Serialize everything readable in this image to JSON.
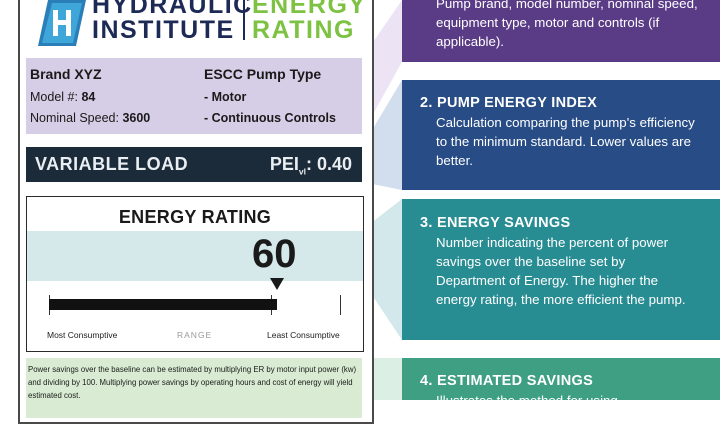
{
  "brand": {
    "line1_left": "HYDRAULIC",
    "line2_left": "INSTITUTE",
    "line1_right": "ENERGY",
    "line2_right": "RATING"
  },
  "pump_info": {
    "brand_name": "Brand XYZ",
    "model_label": "Model #:",
    "model_value": "84",
    "speed_label": "Nominal Speed:",
    "speed_value": "3600",
    "type_heading": "ESCC Pump Type",
    "type_items": [
      "- Motor",
      "- Continuous Controls"
    ]
  },
  "load_bar": {
    "label": "VARIABLE LOAD",
    "pei_label": "PEI",
    "pei_subscript": "vl",
    "pei_value": ": 0.40"
  },
  "energy_rating": {
    "title": "ENERGY RATING",
    "value": "60",
    "fill_fraction": 0.78,
    "label_most": "Most Consumptive",
    "label_range": "RANGE",
    "label_least": "Least Consumptive"
  },
  "savings_note": "Power savings over the baseline can be estimated by multiplying ER by motor input power (kw) and dividing by 100. Multiplying power savings by operating hours and cost of energy will yield estimated cost.",
  "callouts": [
    {
      "title": "",
      "body": "Pump brand, model number, nominal speed, equipment type, motor and controls (if applicable)."
    },
    {
      "title": "2. PUMP ENERGY INDEX",
      "body": "Calculation comparing the pump's efficiency to the minimum standard. Lower values are better."
    },
    {
      "title": "3. ENERGY SAVINGS",
      "body": "Number indicating the percent of power savings over the baseline set by Department of Energy. The higher the energy rating, the more efficient the pump."
    },
    {
      "title": "4. ESTIMATED SAVINGS",
      "body": "Illustrates the method for using"
    }
  ],
  "colors": {
    "navy": "#1c2a55",
    "brand_green": "#7dc242",
    "callout_1": "#5a3c86",
    "callout_2": "#274c86",
    "callout_3": "#288c93",
    "callout_4": "#3f9f82",
    "info_bg": "#d6cde6",
    "load_bar_bg": "#1c2b39",
    "rating_band": "#d5e8ea",
    "note_bg": "#d9ecd3"
  }
}
